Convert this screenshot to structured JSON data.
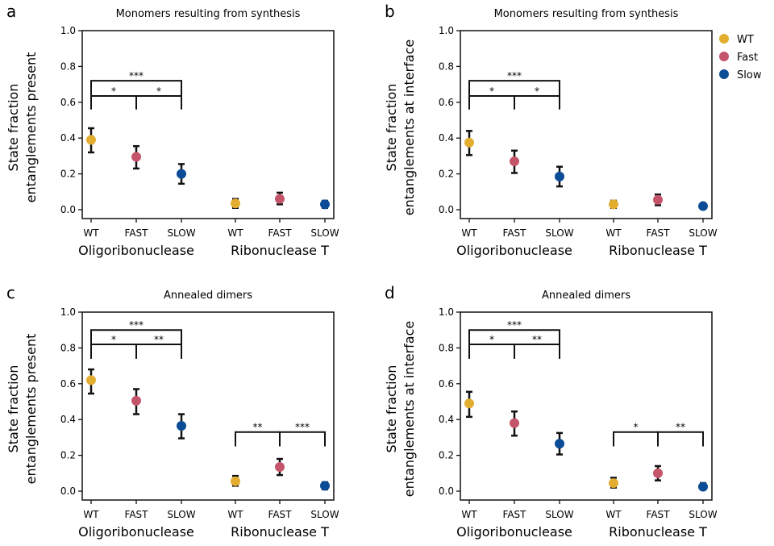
{
  "chart_data": [
    {
      "type": "scatter",
      "panel_letter": "a",
      "title": "Monomers resulting from synthesis",
      "ylabel": [
        "State fraction",
        "entanglements present"
      ],
      "ylim": [
        0,
        1.0
      ],
      "yticks": [
        "0.0",
        "0.2",
        "0.4",
        "0.6",
        "0.8",
        "1.0"
      ],
      "categories": [
        "WT",
        "FAST",
        "SLOW",
        "WT",
        "FAST",
        "SLOW"
      ],
      "groups": [
        "Oligoribonuclease",
        "Ribonuclease T"
      ],
      "series_index": [
        0,
        1,
        2,
        0,
        1,
        2
      ],
      "values": [
        0.39,
        0.295,
        0.2,
        0.035,
        0.06,
        0.03
      ],
      "err_low": [
        0.32,
        0.23,
        0.145,
        0.01,
        0.03,
        0.01
      ],
      "err_high": [
        0.455,
        0.355,
        0.255,
        0.06,
        0.095,
        0.05
      ],
      "brackets": [
        {
          "from": 0,
          "to": 2,
          "y": 0.72,
          "drop": 0.56,
          "label": "***"
        },
        {
          "from": 0,
          "to": 1,
          "y": 0.635,
          "drop": 0.56,
          "label": "*"
        },
        {
          "from": 1,
          "to": 2,
          "y": 0.635,
          "drop": 0.56,
          "label": "*"
        }
      ]
    },
    {
      "type": "scatter",
      "panel_letter": "b",
      "title": "Monomers resulting from synthesis",
      "ylabel": [
        "State fraction",
        "entanglements at interface"
      ],
      "ylim": [
        0,
        1.0
      ],
      "yticks": [
        "0.0",
        "0.2",
        "0.4",
        "0.6",
        "0.8",
        "1.0"
      ],
      "categories": [
        "WT",
        "FAST",
        "SLOW",
        "WT",
        "FAST",
        "SLOW"
      ],
      "groups": [
        "Oligoribonuclease",
        "Ribonuclease T"
      ],
      "series_index": [
        0,
        1,
        2,
        0,
        1,
        2
      ],
      "values": [
        0.375,
        0.27,
        0.185,
        0.03,
        0.055,
        0.02
      ],
      "err_low": [
        0.305,
        0.205,
        0.13,
        0.01,
        0.025,
        0.005
      ],
      "err_high": [
        0.44,
        0.33,
        0.24,
        0.05,
        0.085,
        0.035
      ],
      "brackets": [
        {
          "from": 0,
          "to": 2,
          "y": 0.72,
          "drop": 0.56,
          "label": "***"
        },
        {
          "from": 0,
          "to": 1,
          "y": 0.635,
          "drop": 0.56,
          "label": "*"
        },
        {
          "from": 1,
          "to": 2,
          "y": 0.635,
          "drop": 0.56,
          "label": "*"
        }
      ]
    },
    {
      "type": "scatter",
      "panel_letter": "c",
      "title": "Annealed dimers",
      "ylabel": [
        "State fraction",
        "entanglements present"
      ],
      "ylim": [
        0,
        1.0
      ],
      "yticks": [
        "0.0",
        "0.2",
        "0.4",
        "0.6",
        "0.8",
        "1.0"
      ],
      "categories": [
        "WT",
        "FAST",
        "SLOW",
        "WT",
        "FAST",
        "SLOW"
      ],
      "groups": [
        "Oligoribonuclease",
        "Ribonuclease T"
      ],
      "series_index": [
        0,
        1,
        2,
        0,
        1,
        2
      ],
      "values": [
        0.62,
        0.505,
        0.365,
        0.055,
        0.135,
        0.03
      ],
      "err_low": [
        0.545,
        0.43,
        0.295,
        0.03,
        0.09,
        0.01
      ],
      "err_high": [
        0.68,
        0.57,
        0.43,
        0.085,
        0.18,
        0.05
      ],
      "brackets": [
        {
          "from": 0,
          "to": 2,
          "y": 0.9,
          "drop": 0.74,
          "label": "***"
        },
        {
          "from": 0,
          "to": 1,
          "y": 0.82,
          "drop": 0.74,
          "label": "*"
        },
        {
          "from": 1,
          "to": 2,
          "y": 0.82,
          "drop": 0.74,
          "label": "**"
        },
        {
          "from": 3,
          "to": 4,
          "y": 0.33,
          "drop": 0.25,
          "label": "**"
        },
        {
          "from": 4,
          "to": 5,
          "y": 0.33,
          "drop": 0.25,
          "label": "***"
        }
      ]
    },
    {
      "type": "scatter",
      "panel_letter": "d",
      "title": "Annealed dimers",
      "ylabel": [
        "State fraction",
        "entanglements at interface"
      ],
      "ylim": [
        0,
        1.0
      ],
      "yticks": [
        "0.0",
        "0.2",
        "0.4",
        "0.6",
        "0.8",
        "1.0"
      ],
      "categories": [
        "WT",
        "FAST",
        "SLOW",
        "WT",
        "FAST",
        "SLOW"
      ],
      "groups": [
        "Oligoribonuclease",
        "Ribonuclease T"
      ],
      "series_index": [
        0,
        1,
        2,
        0,
        1,
        2
      ],
      "values": [
        0.49,
        0.38,
        0.265,
        0.045,
        0.1,
        0.025
      ],
      "err_low": [
        0.415,
        0.31,
        0.205,
        0.02,
        0.06,
        0.01
      ],
      "err_high": [
        0.555,
        0.445,
        0.325,
        0.075,
        0.14,
        0.045
      ],
      "brackets": [
        {
          "from": 0,
          "to": 2,
          "y": 0.9,
          "drop": 0.74,
          "label": "***"
        },
        {
          "from": 0,
          "to": 1,
          "y": 0.82,
          "drop": 0.74,
          "label": "*"
        },
        {
          "from": 1,
          "to": 2,
          "y": 0.82,
          "drop": 0.74,
          "label": "**"
        },
        {
          "from": 3,
          "to": 4,
          "y": 0.33,
          "drop": 0.25,
          "label": "*"
        },
        {
          "from": 4,
          "to": 5,
          "y": 0.33,
          "drop": 0.25,
          "label": "**"
        }
      ]
    }
  ],
  "legend": [
    {
      "label": "WT",
      "color": "#E3AE2F"
    },
    {
      "label": "Fast",
      "color": "#C4546A"
    },
    {
      "label": "Slow",
      "color": "#0B4C96"
    }
  ]
}
